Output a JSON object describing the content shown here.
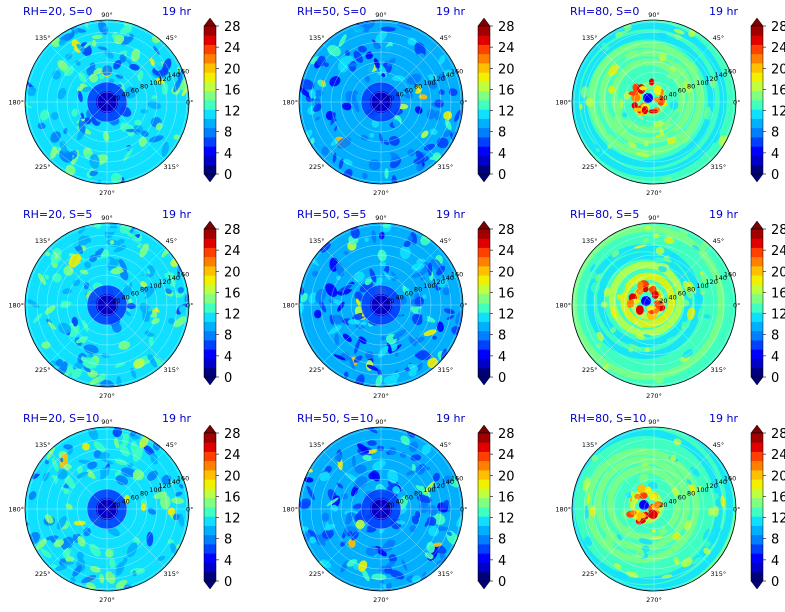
{
  "chart_data": [
    {
      "type": "heatmap",
      "polar": true,
      "title_left": "RH=20, S=0",
      "title_right": "19 hr",
      "rh": 20,
      "s": 0
    },
    {
      "type": "heatmap",
      "polar": true,
      "title_left": "RH=50, S=0",
      "title_right": "19 hr",
      "rh": 50,
      "s": 0
    },
    {
      "type": "heatmap",
      "polar": true,
      "title_left": "RH=80, S=0",
      "title_right": "19 hr",
      "rh": 80,
      "s": 0
    },
    {
      "type": "heatmap",
      "polar": true,
      "title_left": "RH=20, S=5",
      "title_right": "19 hr",
      "rh": 20,
      "s": 5
    },
    {
      "type": "heatmap",
      "polar": true,
      "title_left": "RH=50, S=5",
      "title_right": "19 hr",
      "rh": 50,
      "s": 5
    },
    {
      "type": "heatmap",
      "polar": true,
      "title_left": "RH=80, S=5",
      "title_right": "19 hr",
      "rh": 80,
      "s": 5
    },
    {
      "type": "heatmap",
      "polar": true,
      "title_left": "RH=20, S=10",
      "title_right": "19 hr",
      "rh": 20,
      "s": 10
    },
    {
      "type": "heatmap",
      "polar": true,
      "title_left": "RH=50, S=10",
      "title_right": "19 hr",
      "rh": 50,
      "s": 10
    },
    {
      "type": "heatmap",
      "polar": true,
      "title_left": "RH=80, S=10",
      "title_right": "19 hr",
      "rh": 80,
      "s": 10
    }
  ],
  "angle_labels": [
    "0°",
    "45°",
    "90°",
    "135°",
    "180°",
    "225°",
    "270°",
    "315°"
  ],
  "radial_labels": [
    "20",
    "40",
    "60",
    "80",
    "100",
    "120",
    "140",
    "160"
  ],
  "colorbar": {
    "ticks": [
      "0",
      "4",
      "8",
      "12",
      "16",
      "20",
      "24",
      "28"
    ],
    "colors": [
      "#00007f",
      "#0000c8",
      "#0000ff",
      "#0040ff",
      "#0080ff",
      "#00b0ff",
      "#10e0ff",
      "#40ffc0",
      "#80ff80",
      "#c0ff40",
      "#f0f000",
      "#ffc000",
      "#ff8000",
      "#ff4000",
      "#e00000",
      "#a00000"
    ],
    "under_color": "#00007f",
    "over_color": "#7f0000",
    "vmin": 0,
    "vmax": 28
  }
}
